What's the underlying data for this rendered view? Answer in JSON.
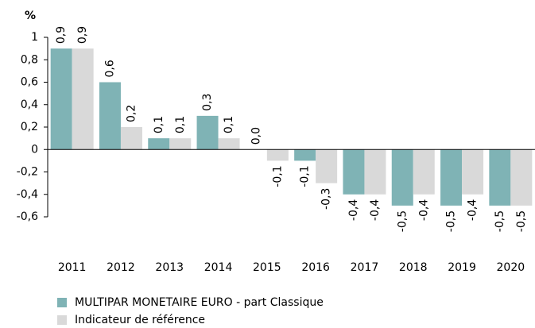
{
  "chart_data": {
    "type": "bar",
    "y_label": "%",
    "categories": [
      "2011",
      "2012",
      "2013",
      "2014",
      "2015",
      "2016",
      "2017",
      "2018",
      "2019",
      "2020"
    ],
    "series": [
      {
        "name": "MULTIPAR MONETAIRE EURO - part Classique",
        "color": "#7fb3b5",
        "values": [
          0.9,
          0.6,
          0.1,
          0.3,
          0.0,
          -0.1,
          -0.4,
          -0.5,
          -0.5,
          -0.5
        ],
        "value_labels": [
          "0,9",
          "0,6",
          "0,1",
          "0,3",
          "0,0",
          "-0,1",
          "-0,4",
          "-0,5",
          "-0,5",
          "-0,5"
        ]
      },
      {
        "name": "Indicateur de référence",
        "color": "#d9d9d9",
        "values": [
          0.9,
          0.2,
          0.1,
          0.1,
          -0.1,
          -0.3,
          -0.4,
          -0.4,
          -0.4,
          -0.5
        ],
        "value_labels": [
          "0,9",
          "0,2",
          "0,1",
          "0,1",
          "-0,1",
          "-0,3",
          "-0,4",
          "-0,4",
          "-0,4",
          "-0,5"
        ]
      }
    ],
    "ylim": [
      -0.6,
      1
    ],
    "yticks": [
      {
        "value": -0.6,
        "label": "-0,6"
      },
      {
        "value": -0.4,
        "label": "-0,4"
      },
      {
        "value": -0.2,
        "label": "-0,2"
      },
      0,
      {
        "value": 0.2,
        "label": "0,2"
      },
      {
        "value": 0.4,
        "label": "0,4"
      },
      {
        "value": 0.6,
        "label": "0,6"
      },
      {
        "value": 0.8,
        "label": "0,8"
      },
      1
    ]
  }
}
